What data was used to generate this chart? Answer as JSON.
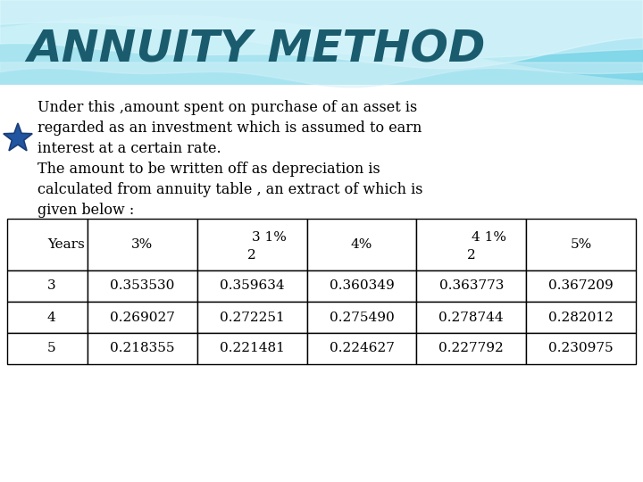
{
  "title": "ANNUITY METHOD",
  "title_color": "#1a5c6e",
  "body_lines": [
    "Under this ,amount spent on purchase of an asset is",
    "regarded as an investment which is assumed to earn",
    "interest at a certain rate.",
    "The amount to be written off as depreciation is",
    "calculated from annuity table , an extract of which is",
    "given below :"
  ],
  "table_headers_top": [
    "Years",
    "3%",
    "3 1%",
    "4%",
    "4 1%",
    "5%"
  ],
  "table_headers_bot": [
    "",
    "",
    "2",
    "",
    "2",
    ""
  ],
  "table_data": [
    [
      "3",
      "0.353530",
      "0.359634",
      "0.360349",
      "0.363773",
      "0.367209"
    ],
    [
      "4",
      "0.269027",
      "0.272251",
      "0.275490",
      "0.278744",
      "0.282012"
    ],
    [
      "5",
      "0.218355",
      "0.221481",
      "0.224627",
      "0.227792",
      "0.230975"
    ]
  ],
  "wave_color1": "#7ed6e8",
  "wave_color2": "#a8e4f0",
  "wave_color3": "#c8eff8",
  "wave_color4": "#e0f7fc",
  "bg_white": "#ffffff",
  "title_fontsize": 36,
  "body_fontsize": 11.5,
  "table_fontsize": 11,
  "star_color": "#2255a0",
  "star_edge": "#1a3d7a",
  "text_color": "#000000"
}
